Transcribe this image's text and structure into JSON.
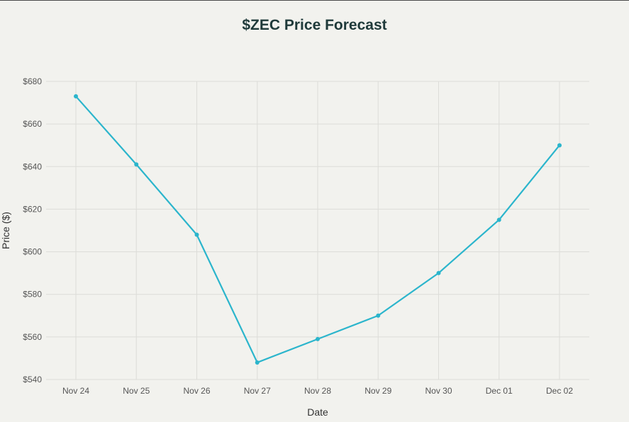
{
  "chart_data": {
    "type": "line",
    "title": "$ZEC Price Forecast",
    "xlabel": "Date",
    "ylabel": "Price ($)",
    "categories": [
      "Nov 24",
      "Nov 25",
      "Nov 26",
      "Nov 27",
      "Nov 28",
      "Nov 29",
      "Nov 30",
      "Dec 01",
      "Dec 02"
    ],
    "series": [
      {
        "values": [
          673,
          641,
          608,
          548,
          559,
          570,
          590,
          615,
          650
        ],
        "color": "#2bb5cc"
      }
    ],
    "ylim": [
      540,
      680
    ],
    "yticks": [
      540,
      560,
      580,
      600,
      620,
      640,
      660,
      680
    ],
    "ytick_labels": [
      "$540",
      "$560",
      "$580",
      "$600",
      "$620",
      "$640",
      "$660",
      "$680"
    ],
    "grid": true,
    "legend": "none"
  },
  "colors": {
    "background": "#f2f2ee",
    "grid": "#dcdcd8",
    "line": "#2bb5cc",
    "title": "#1f3a3a"
  }
}
